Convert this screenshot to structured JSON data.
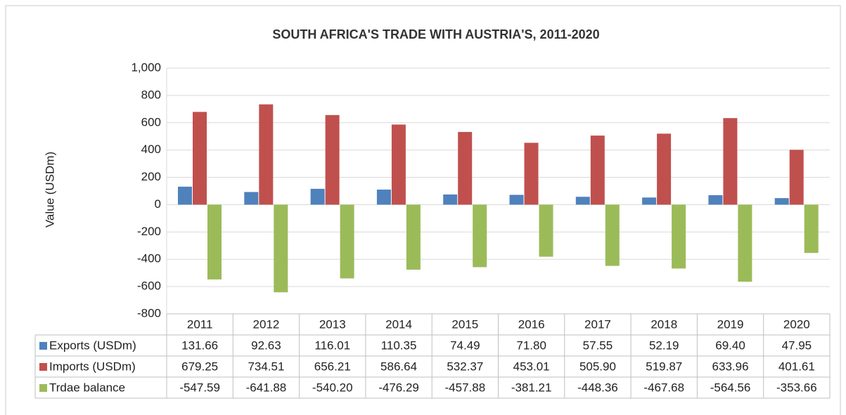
{
  "chart_data": {
    "type": "bar",
    "title": "SOUTH AFRICA'S TRADE WITH AUSTRIA'S, 2011-2020",
    "y_label": "Value (USDm)",
    "categories": [
      "2011",
      "2012",
      "2013",
      "2014",
      "2015",
      "2016",
      "2017",
      "2018",
      "2019",
      "2020"
    ],
    "series": [
      {
        "name": "Exports (USDm)",
        "color": "#4f81bd",
        "values": [
          131.66,
          92.63,
          116.01,
          110.35,
          74.49,
          71.8,
          57.55,
          52.19,
          69.4,
          47.95
        ],
        "value_labels": [
          "131.66",
          "92.63",
          "116.01",
          "110.35",
          "74.49",
          "71.80",
          "57.55",
          "52.19",
          "69.40",
          "47.95"
        ]
      },
      {
        "name": "Imports (USDm)",
        "color": "#c0504d",
        "values": [
          679.25,
          734.51,
          656.21,
          586.64,
          532.37,
          453.01,
          505.9,
          519.87,
          633.96,
          401.61
        ],
        "value_labels": [
          "679.25",
          "734.51",
          "656.21",
          "586.64",
          "532.37",
          "453.01",
          "505.90",
          "519.87",
          "633.96",
          "401.61"
        ]
      },
      {
        "name": "Trdae balance",
        "color": "#9bbb59",
        "values": [
          -547.59,
          -641.88,
          -540.2,
          -476.29,
          -457.88,
          -381.21,
          -448.36,
          -467.68,
          -564.56,
          -353.66
        ],
        "value_labels": [
          "-547.59",
          "-641.88",
          "-540.20",
          "-476.29",
          "-457.88",
          "-381.21",
          "-448.36",
          "-467.68",
          "-564.56",
          "-353.66"
        ]
      }
    ],
    "ylim": [
      -800,
      1000
    ],
    "yticks": [
      -800,
      -600,
      -400,
      -200,
      0,
      200,
      400,
      600,
      800,
      {
        "value": 1000,
        "label": "1,000"
      }
    ],
    "grid": true
  }
}
